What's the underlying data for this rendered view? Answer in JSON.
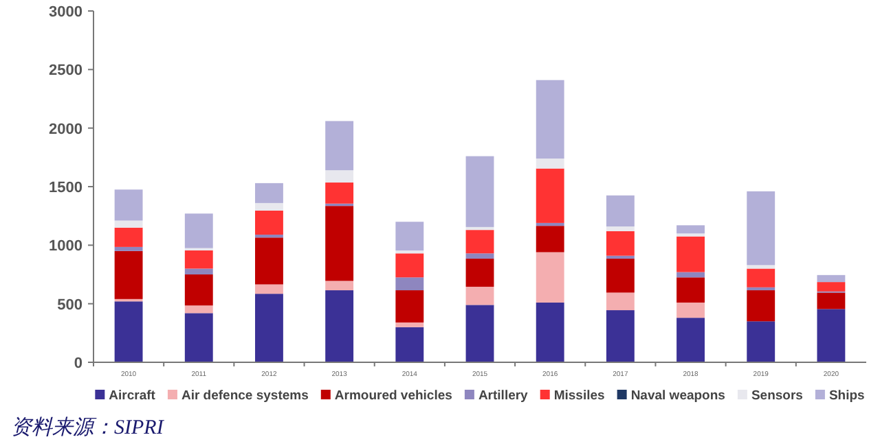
{
  "chart_data": {
    "type": "bar",
    "stacked": true,
    "categories": [
      "2010",
      "2011",
      "2012",
      "2013",
      "2014",
      "2015",
      "2016",
      "2017",
      "2018",
      "2019",
      "2020"
    ],
    "series": [
      {
        "name": "Aircraft",
        "color": "#3b3196",
        "values": [
          520,
          420,
          585,
          615,
          300,
          490,
          510,
          445,
          380,
          350,
          455
        ]
      },
      {
        "name": "Air defence systems",
        "color": "#f4aeb0",
        "values": [
          20,
          65,
          80,
          80,
          40,
          155,
          430,
          150,
          130,
          null,
          0
        ]
      },
      {
        "name": "Armoured vehicles",
        "color": "#c00000",
        "values": [
          410,
          265,
          400,
          640,
          275,
          240,
          225,
          290,
          215,
          265,
          140
        ]
      },
      {
        "name": "Artillery",
        "color": "#8e86bf",
        "values": [
          35,
          50,
          25,
          20,
          110,
          45,
          25,
          25,
          45,
          25,
          10
        ]
      },
      {
        "name": "Missiles",
        "color": "#ff3333",
        "values": [
          165,
          155,
          205,
          180,
          205,
          200,
          465,
          210,
          305,
          160,
          80
        ]
      },
      {
        "name": "Naval weapons",
        "color": "#1f3864",
        "values": [
          0,
          0,
          0,
          0,
          0,
          0,
          0,
          0,
          0,
          0,
          0
        ]
      },
      {
        "name": "Sensors",
        "color": "#e8e8ee",
        "values": [
          60,
          20,
          65,
          105,
          25,
          25,
          85,
          40,
          25,
          30,
          null
        ]
      },
      {
        "name": "Ships",
        "color": "#b3b0d8",
        "values": [
          265,
          295,
          170,
          420,
          245,
          605,
          670,
          265,
          70,
          630,
          60
        ]
      }
    ],
    "ylim": [
      0,
      3000
    ],
    "yticks": [
      0,
      500,
      1000,
      1500,
      2000,
      2500,
      3000
    ],
    "grid": false,
    "legend": "bottom",
    "annotations": [
      "资料来源：SIPRI"
    ]
  }
}
